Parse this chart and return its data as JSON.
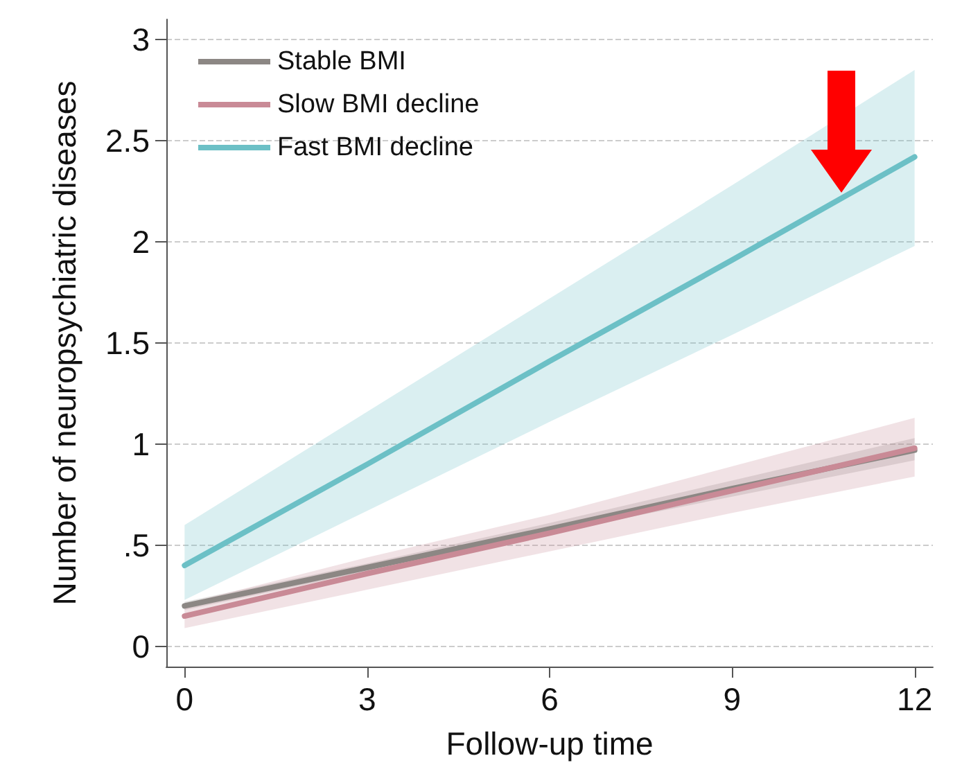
{
  "chart_data": {
    "type": "line",
    "xlabel": "Follow-up time",
    "ylabel": "Number of neuropsychiatric diseases",
    "x": [
      0,
      3,
      6,
      9,
      12
    ],
    "series": [
      {
        "name": "Stable BMI",
        "color": "#8c8784",
        "values": [
          0.2,
          0.39,
          0.58,
          0.78,
          0.97
        ],
        "lower": [
          0.18,
          0.37,
          0.56,
          0.74,
          0.92
        ],
        "upper": [
          0.22,
          0.41,
          0.61,
          0.82,
          1.03
        ]
      },
      {
        "name": "Slow BMI decline",
        "color": "#c98a96",
        "values": [
          0.15,
          0.36,
          0.56,
          0.77,
          0.98
        ],
        "lower": [
          0.09,
          0.28,
          0.47,
          0.66,
          0.84
        ],
        "upper": [
          0.21,
          0.44,
          0.65,
          0.89,
          1.13
        ]
      },
      {
        "name": "Fast BMI decline",
        "color": "#6cc0c6",
        "values": [
          0.4,
          0.9,
          1.41,
          1.91,
          2.42
        ],
        "lower": [
          0.23,
          0.67,
          1.11,
          1.54,
          1.98
        ],
        "upper": [
          0.6,
          1.16,
          1.72,
          2.28,
          2.85
        ]
      }
    ],
    "xlim": [
      -0.3,
      12.3
    ],
    "xticks": [
      0,
      3,
      6,
      9,
      12
    ],
    "ylim": [
      -0.1,
      3.1
    ],
    "yticks": [
      0,
      {
        "value": 0.5,
        "label": ".5"
      },
      1,
      1.5,
      2,
      2.5,
      3
    ],
    "grid": "y",
    "legend": "top left",
    "line_style": "solid",
    "marker": "none"
  }
}
